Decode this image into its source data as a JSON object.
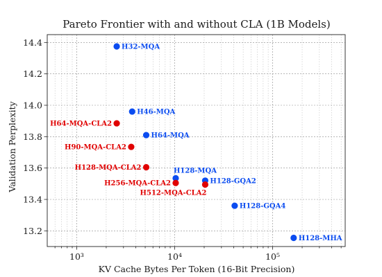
{
  "chart_data": {
    "type": "scatter",
    "title": "Pareto Frontier with and without CLA (1B Models)",
    "xlabel": "KV Cache Bytes Per Token (16-Bit Precision)",
    "ylabel": "Validation Perplexity",
    "x_scale": "log",
    "xlim": [
      500,
      550000
    ],
    "ylim": [
      13.1,
      14.45
    ],
    "x_ticks": [
      {
        "value": 1000,
        "label": "10³"
      },
      {
        "value": 10000,
        "label": "10⁴"
      },
      {
        "value": 100000,
        "label": "10⁵"
      }
    ],
    "y_ticks": [
      {
        "value": 13.2,
        "label": "13.2"
      },
      {
        "value": 13.4,
        "label": "13.4"
      },
      {
        "value": 13.6,
        "label": "13.6"
      },
      {
        "value": 13.8,
        "label": "13.8"
      },
      {
        "value": 14.0,
        "label": "14.0"
      },
      {
        "value": 14.2,
        "label": "14.2"
      },
      {
        "value": 14.4,
        "label": "14.4"
      }
    ],
    "grid": true,
    "colors": {
      "blue": "#0b4cf0",
      "red": "#e00000"
    },
    "series": [
      {
        "color": "#0b4cf0",
        "points": [
          {
            "label": "H32-MQA",
            "x": 2560,
            "y": 14.375,
            "anchor": "right"
          },
          {
            "label": "H46-MQA",
            "x": 3680,
            "y": 13.96,
            "anchor": "right"
          },
          {
            "label": "H64-MQA",
            "x": 5120,
            "y": 13.81,
            "anchor": "right"
          },
          {
            "label": "H128-MQA",
            "x": 10240,
            "y": 13.535,
            "anchor": "above"
          },
          {
            "label": "H128-GQA2",
            "x": 20480,
            "y": 13.52,
            "anchor": "right"
          },
          {
            "label": "H128-GQA4",
            "x": 40960,
            "y": 13.36,
            "anchor": "right"
          },
          {
            "label": "H128-MHA",
            "x": 163840,
            "y": 13.155,
            "anchor": "right"
          }
        ]
      },
      {
        "color": "#e00000",
        "points": [
          {
            "label": "H64-MQA-CLA2",
            "x": 2560,
            "y": 13.885,
            "anchor": "left"
          },
          {
            "label": "H90-MQA-CLA2",
            "x": 3600,
            "y": 13.735,
            "anchor": "left"
          },
          {
            "label": "H128-MQA-CLA2",
            "x": 5120,
            "y": 13.605,
            "anchor": "left"
          },
          {
            "label": "H256-MQA-CLA2",
            "x": 10240,
            "y": 13.505,
            "anchor": "left"
          },
          {
            "label": "H512-MQA-CLA2",
            "x": 20480,
            "y": 13.495,
            "anchor": "below-left"
          }
        ]
      }
    ]
  }
}
